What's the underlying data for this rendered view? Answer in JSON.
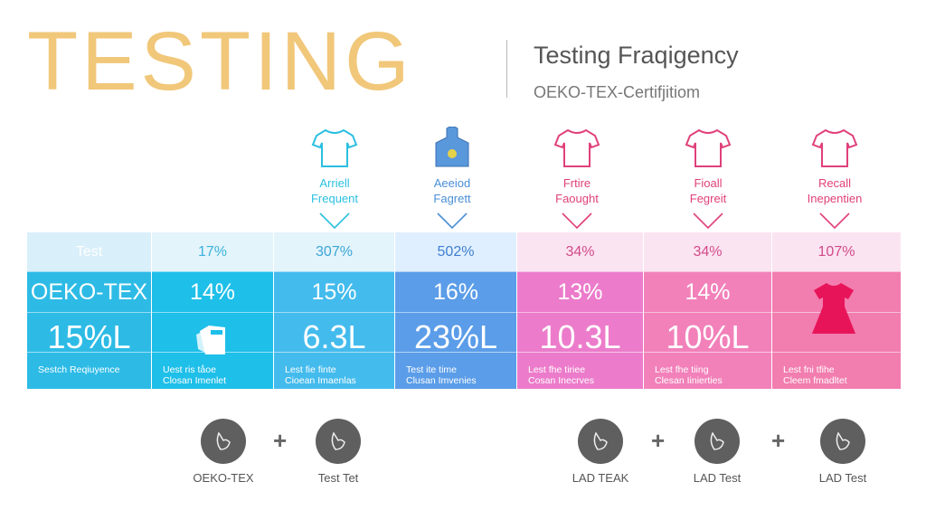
{
  "header": {
    "big_title": "TESTING",
    "title": "Testing Fraqigency",
    "subtitle": "OEKO-TEX-Certifjitiom"
  },
  "columns_header": [
    {
      "line1": "Arriell",
      "line2": "Frequent",
      "icon": "t-shirt-icon",
      "color": "#2bbfe0"
    },
    {
      "line1": "Aeeiod",
      "line2": "Fagrett",
      "icon": "hoodie-icon",
      "color": "#4a8fd6"
    },
    {
      "line1": "Frtire",
      "line2": "Faought",
      "icon": "shirt-icon",
      "color": "#e0407a"
    },
    {
      "line1": "Fioall",
      "line2": "Fegreit",
      "icon": "polo-shirt-icon",
      "color": "#e0407a"
    },
    {
      "line1": "Recall",
      "line2": "Inepentien",
      "icon": "t-shirt-print-icon",
      "color": "#e0407a"
    }
  ],
  "table": [
    {
      "top": "Test",
      "mid": "OEKO-TEX",
      "val": "15%L",
      "cap1": "Sestch Reqiuyence",
      "cap2": "",
      "light": "#d9effa",
      "dark": "#2dbbe6",
      "topcolor": "#ffffff"
    },
    {
      "top": "17%",
      "mid": "14%",
      "val": "",
      "icon": "document-icon",
      "cap1": "Uest ris tåoe",
      "cap2": "Closan Imenlet",
      "light": "#e4f4fb",
      "dark": "#1ebfe9",
      "topcolor": "#3bb3dc"
    },
    {
      "top": "307%",
      "mid": "15%",
      "val": "6.3L",
      "cap1": "Lest fie finte",
      "cap2": "Cioean Imaenlas",
      "light": "#e4f4fb",
      "dark": "#44bbed",
      "topcolor": "#3aa6d6"
    },
    {
      "top": "502%",
      "mid": "16%",
      "val": "23%L",
      "cap1": "Test ite time",
      "cap2": "Clusan Imvenies",
      "light": "#e0efff",
      "dark": "#5b9de8",
      "topcolor": "#3f7fcf"
    },
    {
      "top": "34%",
      "mid": "13%",
      "val": "10.3L",
      "cap1": "Lest fhe tiriee",
      "cap2": "Cosan Inecrves",
      "light": "#fbe4f1",
      "dark": "#ec7ccb",
      "topcolor": "#d24a8a"
    },
    {
      "top": "34%",
      "mid": "14%",
      "val": "10%L",
      "cap1": "Lest fhe tiing",
      "cap2": "Clesan Iinierties",
      "light": "#fbe4f1",
      "dark": "#f281ba",
      "topcolor": "#d24a8a"
    },
    {
      "top": "107%",
      "mid": "",
      "val": "",
      "icon": "dress-icon",
      "cap1": "Lest fni tfihe",
      "cap2": "Cleem fmadltet",
      "light": "#fbe4f1",
      "dark": "#f27daf",
      "topcolor": "#d24a8a"
    }
  ],
  "footer": [
    {
      "label": "OEKO-TEX",
      "icon": "hand-icon"
    },
    {
      "label": "Test Tet",
      "icon": "pen-icon"
    },
    {
      "label": "LAD TEAK",
      "icon": "water-drop-icon"
    },
    {
      "label": "LAD Test",
      "icon": "tablet-icon"
    },
    {
      "label": "LAD Test",
      "icon": "leaf-icon"
    }
  ],
  "plus": "+"
}
